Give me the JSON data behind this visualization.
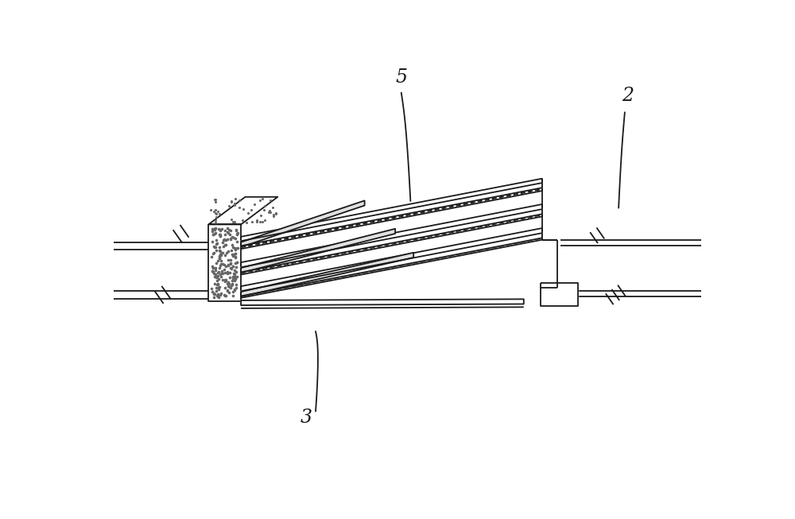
{
  "bg_color": "#ffffff",
  "line_color": "#1a1a1a",
  "lw": 1.3,
  "fig_width": 10.0,
  "fig_height": 6.53,
  "dpi": 100
}
